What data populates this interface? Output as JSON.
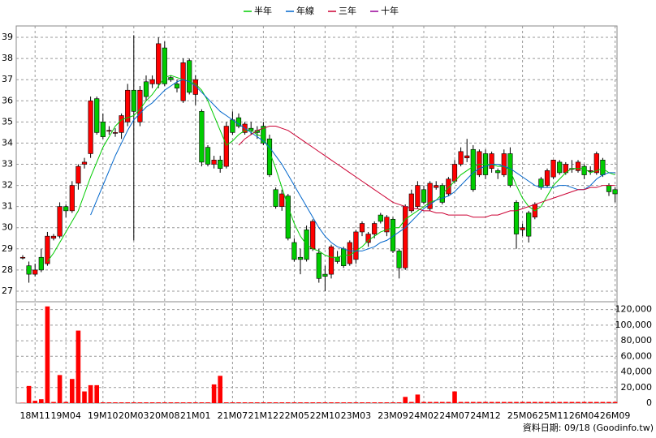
{
  "chart_data": {
    "type": "candlestick",
    "categories": [
      null,
      null,
      "18M11",
      null,
      null,
      null,
      null,
      "19M04",
      null,
      null,
      null,
      null,
      null,
      "19M10",
      null,
      null,
      null,
      null,
      "20M03",
      null,
      null,
      null,
      null,
      "20M08",
      null,
      null,
      null,
      null,
      "21M01",
      null,
      null,
      null,
      null,
      null,
      "21M07",
      null,
      null,
      null,
      null,
      "21M12",
      null,
      null,
      null,
      null,
      "22M05",
      null,
      null,
      null,
      null,
      "22M10",
      null,
      null,
      null,
      null,
      "23M03",
      null,
      null,
      null,
      null,
      null,
      "23M09",
      null,
      null,
      null,
      null,
      "24M02",
      null,
      null,
      null,
      null,
      "24M07",
      null,
      null,
      null,
      null,
      "24M12",
      null,
      null,
      null,
      null,
      null,
      "25M06",
      null,
      null,
      null,
      null,
      "25M11",
      null,
      null,
      null,
      null,
      "26M04",
      null,
      null,
      null,
      null,
      "26M09"
    ],
    "ohlc": [
      [
        28.6,
        28.7,
        28.5,
        28.6
      ],
      [
        28.2,
        28.4,
        27.4,
        27.8
      ],
      [
        27.8,
        28.3,
        27.7,
        28.0
      ],
      [
        28.6,
        29.0,
        27.9,
        28.0
      ],
      [
        28.3,
        29.8,
        28.2,
        29.6
      ],
      [
        29.5,
        29.7,
        29.4,
        29.6
      ],
      [
        29.6,
        31.2,
        29.5,
        31.0
      ],
      [
        31.0,
        31.1,
        30.5,
        30.8
      ],
      [
        30.8,
        32.2,
        30.7,
        32.0
      ],
      [
        32.1,
        33.0,
        31.8,
        32.9
      ],
      [
        33.0,
        33.3,
        32.8,
        33.1
      ],
      [
        33.5,
        36.2,
        33.3,
        36.0
      ],
      [
        36.1,
        36.2,
        34.4,
        34.5
      ],
      [
        35.0,
        35.4,
        34.2,
        34.3
      ],
      [
        34.6,
        34.8,
        34.4,
        34.6
      ],
      [
        34.5,
        34.7,
        34.3,
        34.5
      ],
      [
        34.5,
        35.4,
        34.2,
        35.3
      ],
      [
        35.0,
        36.8,
        34.8,
        36.5
      ],
      [
        36.5,
        39.1,
        29.4,
        35.5
      ],
      [
        35.0,
        36.7,
        34.8,
        36.5
      ],
      [
        36.9,
        37.2,
        36.0,
        36.2
      ],
      [
        36.8,
        37.2,
        36.6,
        37.0
      ],
      [
        36.8,
        39.0,
        36.6,
        38.7
      ],
      [
        38.5,
        38.8,
        36.7,
        36.8
      ],
      [
        37.1,
        37.2,
        36.9,
        37.0
      ],
      [
        36.8,
        37.0,
        36.4,
        36.6
      ],
      [
        36.0,
        38.0,
        35.9,
        37.8
      ],
      [
        37.9,
        38.0,
        36.3,
        36.4
      ],
      [
        36.3,
        37.2,
        35.8,
        37.0
      ],
      [
        35.5,
        35.6,
        32.9,
        33.1
      ],
      [
        33.8,
        33.9,
        32.9,
        33.0
      ],
      [
        33.0,
        33.4,
        32.8,
        33.2
      ],
      [
        33.2,
        33.4,
        32.6,
        32.8
      ],
      [
        32.9,
        35.0,
        32.8,
        34.8
      ],
      [
        35.1,
        35.5,
        34.4,
        34.5
      ],
      [
        35.2,
        35.4,
        34.7,
        34.8
      ],
      [
        34.5,
        35.0,
        34.4,
        34.9
      ],
      [
        34.7,
        35.0,
        34.4,
        34.6
      ],
      [
        34.6,
        34.8,
        34.2,
        34.5
      ],
      [
        34.8,
        35.0,
        33.9,
        34.0
      ],
      [
        34.2,
        34.4,
        32.4,
        32.5
      ],
      [
        31.8,
        31.9,
        30.9,
        31.0
      ],
      [
        31.0,
        31.8,
        30.8,
        31.6
      ],
      [
        31.5,
        31.6,
        29.4,
        29.5
      ],
      [
        29.3,
        29.5,
        28.4,
        28.5
      ],
      [
        28.6,
        29.0,
        27.8,
        28.5
      ],
      [
        29.9,
        30.1,
        28.4,
        28.5
      ],
      [
        29.0,
        30.4,
        28.9,
        30.3
      ],
      [
        28.8,
        29.0,
        27.4,
        27.6
      ],
      [
        27.8,
        28.2,
        27.0,
        27.7
      ],
      [
        27.8,
        29.2,
        27.6,
        29.1
      ],
      [
        28.6,
        28.9,
        28.3,
        28.4
      ],
      [
        29.0,
        29.1,
        28.1,
        28.2
      ],
      [
        28.3,
        29.4,
        28.2,
        29.3
      ],
      [
        28.5,
        29.9,
        28.3,
        29.8
      ],
      [
        29.8,
        30.3,
        29.6,
        30.2
      ],
      [
        29.3,
        29.8,
        29.1,
        29.7
      ],
      [
        29.7,
        30.3,
        29.5,
        30.2
      ],
      [
        30.6,
        30.7,
        30.2,
        30.3
      ],
      [
        29.8,
        30.6,
        29.6,
        30.5
      ],
      [
        30.4,
        30.5,
        28.8,
        28.9
      ],
      [
        28.9,
        29.0,
        27.6,
        28.1
      ],
      [
        28.1,
        31.1,
        28.0,
        31.0
      ],
      [
        30.8,
        31.8,
        30.7,
        31.6
      ],
      [
        31.0,
        32.2,
        30.9,
        32.0
      ],
      [
        31.8,
        32.0,
        31.1,
        31.2
      ],
      [
        30.9,
        32.2,
        30.8,
        32.1
      ],
      [
        31.9,
        32.2,
        31.8,
        32.0
      ],
      [
        32.0,
        32.1,
        31.1,
        31.2
      ],
      [
        31.6,
        32.4,
        31.5,
        32.3
      ],
      [
        32.2,
        33.2,
        32.1,
        33.0
      ],
      [
        33.0,
        33.8,
        32.9,
        33.6
      ],
      [
        33.3,
        34.2,
        33.1,
        33.4
      ],
      [
        33.7,
        33.9,
        31.7,
        31.8
      ],
      [
        32.5,
        33.7,
        32.4,
        33.6
      ],
      [
        33.5,
        33.7,
        32.3,
        32.5
      ],
      [
        32.8,
        33.6,
        32.6,
        33.5
      ],
      [
        32.7,
        32.8,
        32.3,
        32.6
      ],
      [
        32.5,
        33.7,
        32.4,
        33.5
      ],
      [
        33.5,
        33.8,
        31.9,
        32.0
      ],
      [
        31.2,
        31.3,
        29.0,
        29.7
      ],
      [
        29.9,
        30.2,
        29.6,
        30.0
      ],
      [
        30.7,
        30.8,
        29.3,
        29.6
      ],
      [
        30.5,
        31.2,
        30.4,
        31.1
      ],
      [
        32.3,
        32.4,
        31.8,
        31.9
      ],
      [
        32.0,
        32.8,
        31.9,
        32.7
      ],
      [
        32.4,
        33.2,
        32.3,
        33.2
      ],
      [
        33.1,
        33.2,
        32.5,
        32.6
      ],
      [
        32.6,
        33.1,
        32.5,
        33.0
      ],
      [
        32.8,
        33.2,
        32.6,
        32.8
      ],
      [
        32.7,
        33.2,
        32.6,
        33.1
      ],
      [
        32.9,
        33.0,
        32.3,
        32.5
      ],
      [
        32.7,
        32.9,
        32.5,
        32.7
      ],
      [
        32.6,
        33.6,
        32.5,
        33.5
      ],
      [
        33.2,
        33.3,
        32.4,
        32.5
      ],
      [
        32.0,
        32.1,
        31.5,
        31.7
      ],
      [
        31.8,
        31.9,
        31.2,
        31.6
      ]
    ],
    "volume": [
      500,
      22000,
      3000,
      5000,
      124000,
      1500,
      36000,
      1500,
      31000,
      93000,
      15000,
      23000,
      23000,
      1000,
      1000,
      1000,
      1000,
      1000,
      1000,
      1000,
      1000,
      1000,
      1000,
      1000,
      1000,
      1000,
      1000,
      1000,
      1000,
      1000,
      1000,
      24000,
      35000,
      1000,
      1000,
      1000,
      1000,
      1000,
      1000,
      1000,
      1000,
      1000,
      1000,
      1000,
      1000,
      1000,
      1000,
      1000,
      1000,
      1000,
      1000,
      1000,
      1000,
      1000,
      1000,
      1000,
      1000,
      1000,
      1000,
      1000,
      1000,
      1000,
      8000,
      1500,
      11000,
      1500,
      1500,
      1500,
      1500,
      1500,
      15000,
      1500,
      1500,
      1500,
      1500,
      1500,
      1500,
      1500,
      1500,
      1500,
      1500,
      1500,
      1500,
      1500,
      1500,
      1500,
      1500,
      1500,
      1500,
      1500,
      1500,
      1500,
      1500,
      1500,
      1500,
      1500,
      1500
    ],
    "colors": {
      "up": "#ff0000",
      "down": "#00cc00"
    },
    "volume_color": "#ff0000",
    "ylim": [
      26.5,
      39.5
    ],
    "yticks": [
      27,
      28,
      29,
      30,
      31,
      32,
      33,
      34,
      35,
      36,
      37,
      38,
      39
    ],
    "volume_ylim": [
      0,
      130000
    ],
    "volume_yticks": [
      0,
      {
        "value": 20000,
        "label": "20,000"
      },
      {
        "value": 40000,
        "label": "40,000"
      },
      {
        "value": 60000,
        "label": "60,000"
      },
      {
        "value": 80000,
        "label": "80,000"
      },
      {
        "value": 100000,
        "label": "100,000"
      },
      {
        "value": 120000,
        "label": "120,000"
      }
    ],
    "grid": true,
    "legend": "top",
    "series": [
      {
        "name": "半年",
        "color": "#00cc00",
        "values": [
          null,
          null,
          null,
          null,
          28.4,
          28.8,
          29.3,
          29.8,
          30.3,
          30.8,
          31.6,
          32.4,
          33.1,
          33.8,
          34.3,
          34.8,
          35.1,
          35.2,
          35.3,
          35.6,
          36.0,
          36.3,
          36.7,
          37.1,
          37.2,
          37.1,
          37.0,
          36.9,
          36.8,
          36.5,
          36.0,
          35.3,
          34.6,
          33.9,
          34.1,
          34.4,
          34.6,
          34.6,
          34.4,
          34.3,
          33.6,
          32.8,
          31.9,
          31.0,
          30.2,
          29.6,
          29.2,
          29.0,
          28.9,
          28.7,
          28.6,
          28.6,
          28.7,
          28.7,
          28.9,
          29.1,
          29.4,
          29.6,
          29.8,
          29.9,
          30.0,
          30.0,
          30.4,
          30.6,
          30.8,
          31.0,
          31.2,
          31.3,
          31.6,
          31.9,
          32.2,
          32.5,
          32.7,
          32.9,
          33.0,
          33.0,
          33.0,
          32.9,
          32.9,
          32.7,
          32.0,
          31.4,
          31.0,
          30.8,
          31.0,
          31.5,
          32.0,
          32.3,
          32.6,
          32.8,
          32.8,
          32.8,
          32.6,
          32.7,
          32.8,
          32.6,
          32.5
        ]
      },
      {
        "name": "年線",
        "color": "#0066cc",
        "values": [
          null,
          null,
          null,
          null,
          null,
          null,
          null,
          null,
          null,
          null,
          null,
          30.6,
          31.3,
          32.0,
          32.7,
          33.4,
          34.0,
          34.6,
          35.1,
          35.4,
          35.7,
          35.9,
          36.2,
          36.5,
          36.7,
          36.9,
          37.0,
          36.9,
          36.7,
          36.4,
          36.1,
          35.8,
          35.5,
          35.3,
          35.1,
          34.9,
          34.7,
          34.5,
          34.3,
          34.1,
          33.8,
          33.4,
          33.0,
          32.5,
          32.0,
          31.5,
          31.0,
          30.5,
          30.0,
          29.6,
          29.3,
          29.1,
          29.0,
          28.9,
          28.9,
          28.9,
          29.0,
          29.1,
          29.3,
          29.4,
          29.6,
          29.8,
          30.0,
          30.3,
          30.6,
          30.9,
          31.1,
          31.3,
          31.4,
          31.5,
          31.7,
          32.0,
          32.3,
          32.6,
          32.8,
          32.9,
          33.0,
          33.0,
          32.9,
          32.8,
          32.6,
          32.4,
          32.2,
          32.0,
          31.9,
          31.9,
          31.9,
          32.0,
          32.0,
          31.9,
          31.8,
          31.8,
          32.0,
          32.3,
          32.5,
          32.6,
          32.6
        ]
      },
      {
        "name": "三年",
        "color": "#cc0033",
        "values": [
          null,
          null,
          null,
          null,
          null,
          null,
          null,
          null,
          null,
          null,
          null,
          null,
          null,
          null,
          null,
          null,
          null,
          null,
          null,
          null,
          null,
          null,
          null,
          null,
          null,
          null,
          null,
          null,
          null,
          null,
          null,
          null,
          null,
          null,
          null,
          33.9,
          34.2,
          34.4,
          34.6,
          34.7,
          34.8,
          34.8,
          34.7,
          34.6,
          34.4,
          34.2,
          34.0,
          33.8,
          33.6,
          33.4,
          33.2,
          33.0,
          32.8,
          32.6,
          32.4,
          32.2,
          32.0,
          31.8,
          31.6,
          31.4,
          31.2,
          31.1,
          31.0,
          30.9,
          30.9,
          30.8,
          30.8,
          30.7,
          30.7,
          30.6,
          30.6,
          30.6,
          30.6,
          30.5,
          30.5,
          30.5,
          30.6,
          30.6,
          30.7,
          30.8,
          30.8,
          30.9,
          31.0,
          31.1,
          31.2,
          31.3,
          31.4,
          31.5,
          31.6,
          31.7,
          31.8,
          31.8,
          31.9,
          31.9,
          32.0,
          32.0,
          32.0
        ]
      },
      {
        "name": "十年",
        "color": "#990099",
        "values": [
          null,
          null,
          null,
          null,
          null,
          null,
          null,
          null,
          null,
          null,
          null,
          null,
          null,
          null,
          null,
          null,
          null,
          null,
          null,
          null,
          null,
          null,
          null,
          null,
          null,
          null,
          null,
          null,
          null,
          null,
          null,
          null,
          null,
          null,
          null,
          null,
          null,
          null,
          null,
          null,
          null,
          null,
          null,
          null,
          null,
          null,
          null,
          null,
          null,
          null,
          null,
          null,
          null,
          null,
          null,
          null,
          null,
          null,
          null,
          null,
          null,
          null,
          null,
          null,
          null,
          null,
          null,
          null,
          null,
          null,
          null,
          null,
          null,
          null,
          null,
          null,
          null,
          null,
          null,
          null,
          null,
          null,
          null,
          null,
          null,
          null,
          null,
          null,
          null,
          null,
          null,
          null,
          null,
          null,
          null,
          null,
          null
        ]
      }
    ],
    "source": "資料日期: 09/18 (Goodinfo.tw)"
  }
}
